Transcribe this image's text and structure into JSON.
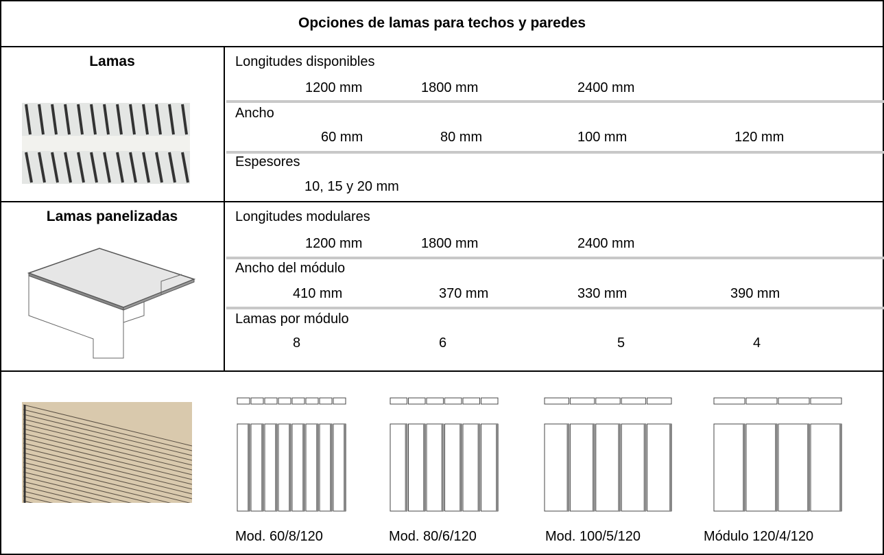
{
  "title": "Opciones de lamas para techos y paredes",
  "sections": [
    {
      "name": "Lamas",
      "rows": [
        {
          "label": "Longitudes disponibles",
          "values": [
            "1200 mm",
            "1800 mm",
            "2400 mm"
          ]
        },
        {
          "label": "Ancho",
          "values": [
            "60 mm",
            "80 mm",
            "100 mm",
            "120 mm"
          ]
        },
        {
          "label": "Espesores",
          "values": [
            "10, 15 y 20 mm"
          ]
        }
      ]
    },
    {
      "name": "Lamas panelizadas",
      "rows": [
        {
          "label": "Longitudes modulares",
          "values": [
            "1200 mm",
            "1800 mm",
            "2400 mm"
          ]
        },
        {
          "label": "Ancho del módulo",
          "values": [
            "410 mm",
            "370 mm",
            "330 mm",
            "390 mm"
          ]
        },
        {
          "label": "Lamas por módulo",
          "values": [
            "8",
            "6",
            "5",
            "4"
          ]
        }
      ]
    }
  ],
  "modules": [
    "Mod. 60/8/120",
    "Mod. 80/6/120",
    "Mod. 100/5/120",
    "Módulo 120/4/120"
  ]
}
